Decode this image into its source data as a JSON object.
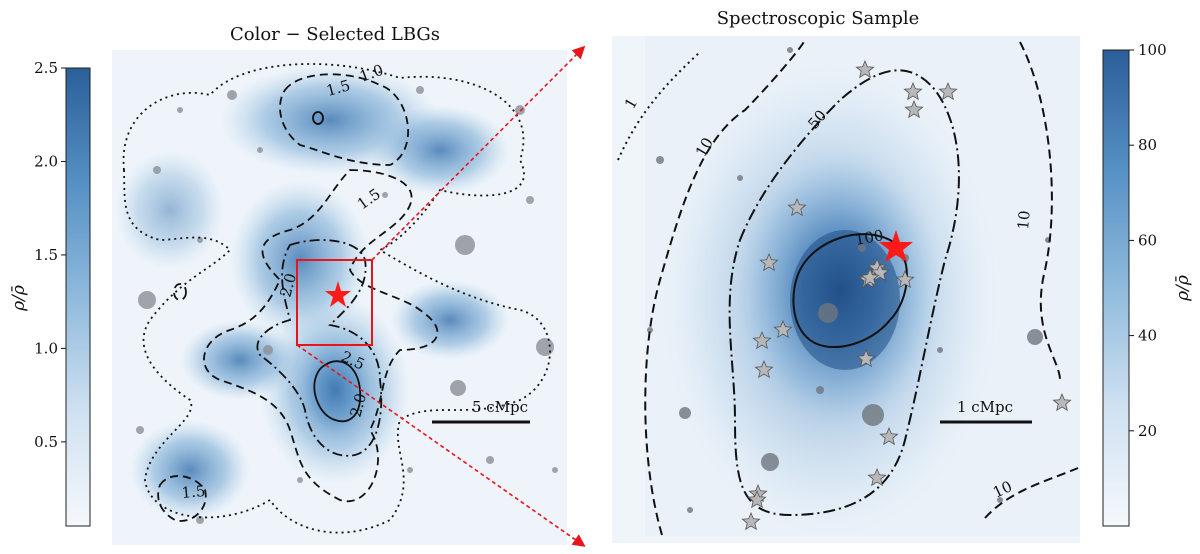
{
  "chart_data": [
    {
      "type": "heatmap",
      "title": "Color − Selected LBGs",
      "colorbar": {
        "label": "ρ/ρ̄",
        "range": [
          0.05,
          2.5
        ],
        "ticks": [
          0.5,
          1.0,
          1.5,
          2.0,
          2.5
        ],
        "tick_labels": [
          "0.5",
          "1.0",
          "1.5",
          "2.0",
          "2.5"
        ],
        "position": "left"
      },
      "contours": [
        {
          "level": "1.0",
          "style": "dotted"
        },
        {
          "level": "1.5",
          "style": "dashed"
        },
        {
          "level": "2.0",
          "style": "dash-dot"
        },
        {
          "level": "2.5",
          "style": "solid"
        }
      ],
      "contour_labels": [
        "1.0",
        "1.5",
        "1.5",
        "2.0",
        "2.5",
        "2.0",
        "1.5"
      ],
      "markers": [
        {
          "type": "star",
          "color": "#ff1a1a",
          "label": ""
        }
      ],
      "zoom_box_color": "#e8151b",
      "scale_bar": "5 cMpc"
    },
    {
      "type": "heatmap",
      "title": "Spectroscopic Sample",
      "colorbar": {
        "label": "ρ/ρ̄",
        "range": [
          0,
          100
        ],
        "ticks": [
          20,
          40,
          60,
          80,
          100
        ],
        "tick_labels": [
          "20",
          "40",
          "60",
          "80",
          "100"
        ],
        "position": "right"
      },
      "contours": [
        {
          "level": "1",
          "style": "dotted"
        },
        {
          "level": "10",
          "style": "dashed"
        },
        {
          "level": "50",
          "style": "dash-dot"
        },
        {
          "level": "100",
          "style": "solid"
        }
      ],
      "contour_labels": [
        "1",
        "10",
        "50",
        "100",
        "10",
        "10"
      ],
      "markers": [
        {
          "type": "star",
          "color": "#ff1a1a",
          "count": 1
        },
        {
          "type": "star",
          "color": "#b8b8b8",
          "count": 27
        }
      ],
      "scale_bar": "1 cMpc"
    }
  ],
  "colors": {
    "cmap_low": "#f3f7fc",
    "cmap_high": "#2b5f99",
    "arrow": "#e8151b",
    "galaxies": "#8c9096"
  }
}
